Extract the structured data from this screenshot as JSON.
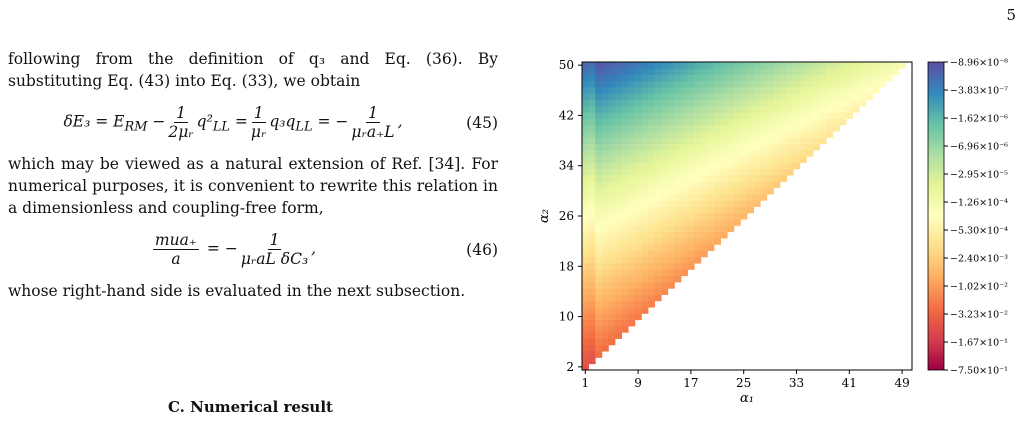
{
  "page_number": "5",
  "paragraphs": {
    "p1": "following from the definition of q₃ and Eq. (36). By substituting Eq. (43) into Eq. (33), we obtain",
    "p2": "which may be viewed as a natural extension of Ref. [34]. For numerical purposes, it is convenient to rewrite this relation in a dimensionless and coupling-free form,",
    "p3": "whose right-hand side is evaluated in the next subsection."
  },
  "equations": {
    "eq45": {
      "lhs": "δE₃ = E",
      "lhs_sub": "RM",
      "frac1_num": "1",
      "frac1_den": "2μᵣ",
      "term1": "q²",
      "term1_sub": "LL",
      "frac2_num": "1",
      "frac2_den": "μᵣ",
      "term2": "q₃q",
      "term2_sub": "LL",
      "frac3_num": "1",
      "frac3_den": "μᵣa₊L",
      "number": "(45)"
    },
    "eq46": {
      "frac1_num": "mua₊",
      "frac1_den": "a",
      "frac2_num": "1",
      "frac2_den": "μᵣaL δC₃",
      "number": "(46)"
    }
  },
  "section_heading": "C.    Numerical result",
  "chart_data": {
    "type": "heatmap",
    "x_label": "α₁",
    "y_label": "α₂",
    "x_ticks": [
      1,
      9,
      17,
      25,
      33,
      41,
      49
    ],
    "y_ticks": [
      2,
      10,
      18,
      26,
      34,
      42,
      50
    ],
    "x_range": [
      1,
      50
    ],
    "y_range": [
      2,
      50
    ],
    "region": "upper-left triangle (α₂ > α₁); lower-right region blank",
    "colormap": "Spectral",
    "colorbar_labels": [
      "−8.96×10⁻⁸",
      "−3.83×10⁻⁷",
      "−1.62×10⁻⁶",
      "−6.96×10⁻⁶",
      "−2.95×10⁻⁵",
      "−1.26×10⁻⁴",
      "−5.30×10⁻⁴",
      "−2.40×10⁻³",
      "−1.02×10⁻²",
      "−3.23×10⁻²",
      "−1.67×10⁻¹",
      "−7.50×10⁻¹"
    ],
    "colors": [
      "#5e4fa2",
      "#3288bd",
      "#66c2a5",
      "#abdda4",
      "#e6f598",
      "#ffffbf",
      "#fee08b",
      "#fdae61",
      "#f46d43",
      "#d53e4f",
      "#9e0142"
    ]
  }
}
